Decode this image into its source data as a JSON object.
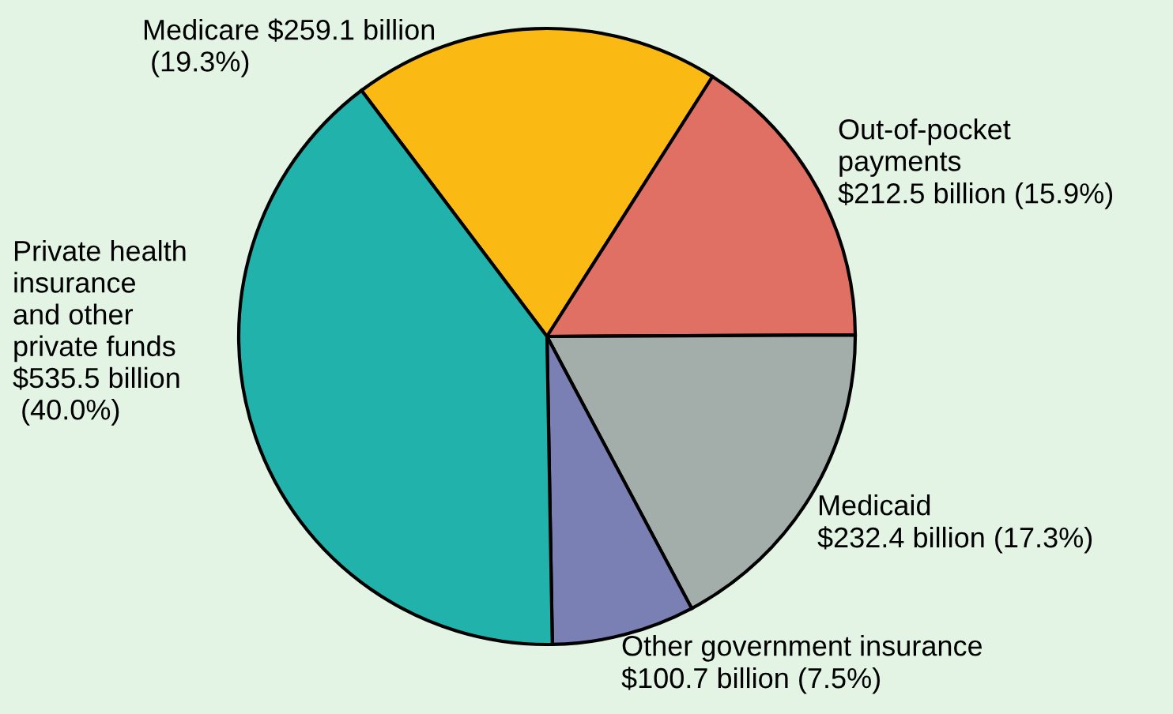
{
  "chart_data": {
    "type": "pie",
    "categories": [
      "Medicare $259.1 billion\n (19.3%)",
      "Out-of-pocket\npayments\n$212.5 billion (15.9%)",
      "Medicaid\n$232.4 billion (17.3%)",
      "Other government insurance\n$100.7 billion (7.5%)",
      "Private health\ninsurance\nand other\nprivate funds\n$535.5 billion\n (40.0%)"
    ],
    "values": [
      19.3,
      15.9,
      17.3,
      7.5,
      40.0
    ],
    "colors": [
      "#fbb913",
      "#e07064",
      "#a3aeaa",
      "#7a80b3",
      "#21b3ab"
    ]
  }
}
